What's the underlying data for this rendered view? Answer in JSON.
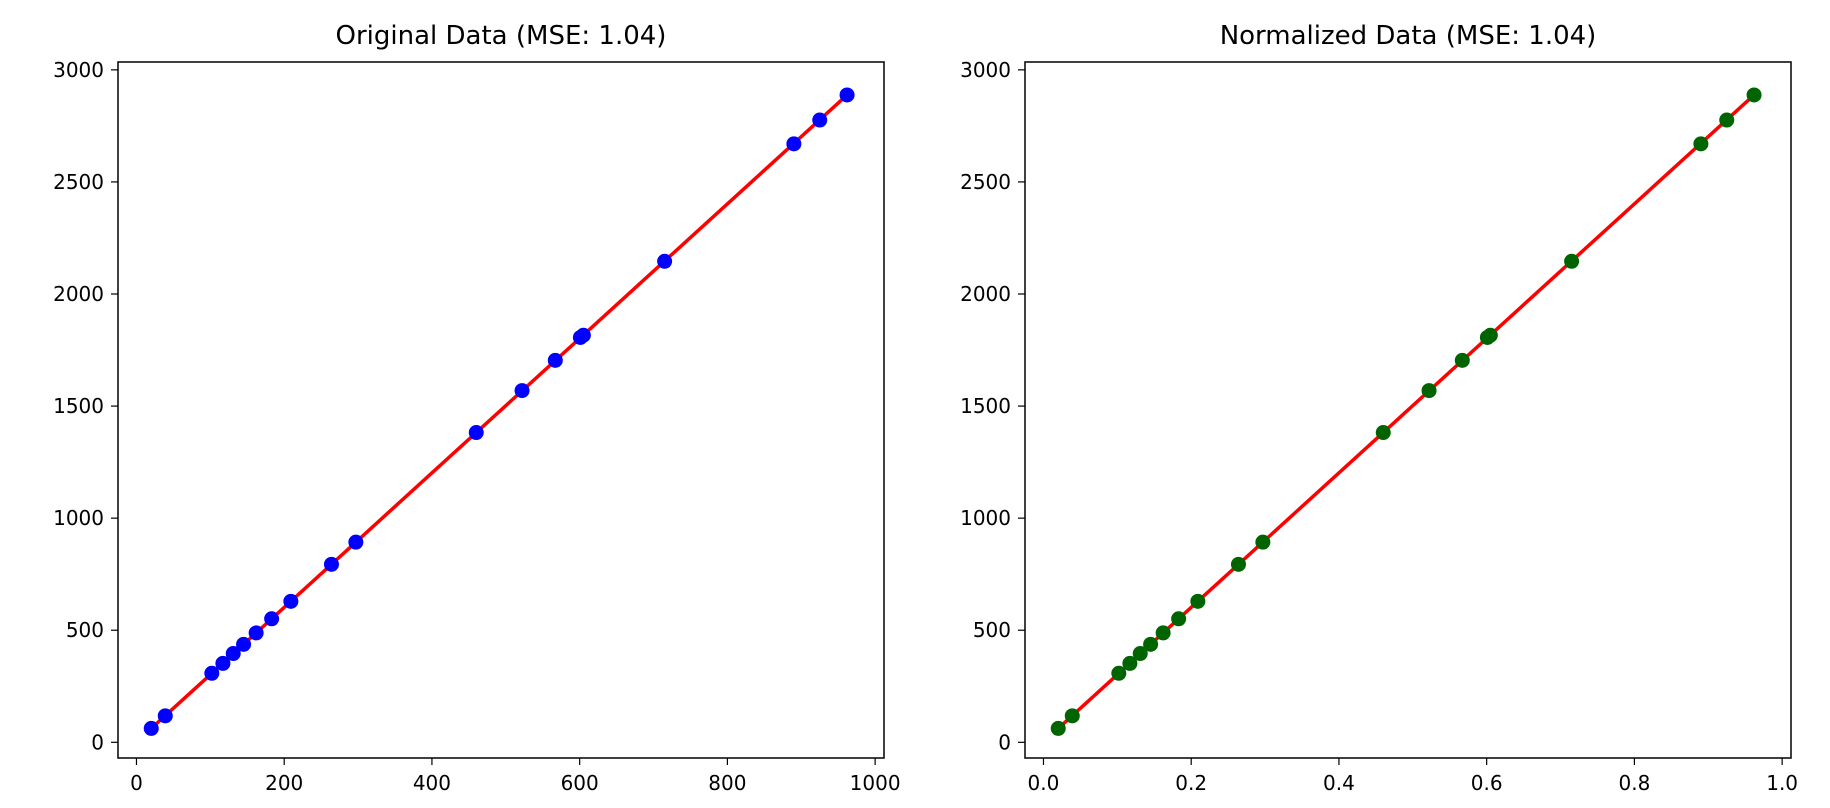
{
  "colors": {
    "original_points": "#0000ff",
    "normalized_points": "#006400",
    "fit_line": "#ff0000",
    "axes": "#000000",
    "background": "#ffffff"
  },
  "chart_data": [
    {
      "type": "scatter",
      "title": "Original Data (MSE: 1.04)",
      "xlabel": "",
      "ylabel": "",
      "xlim": [
        -25,
        1012
      ],
      "ylim": [
        -70,
        3035
      ],
      "xticks": [
        0,
        200,
        400,
        600,
        800,
        1000
      ],
      "yticks": [
        0,
        500,
        1000,
        1500,
        2000,
        2500,
        3000
      ],
      "grid": false,
      "legend": "none",
      "points": {
        "x": [
          20,
          39,
          102,
          117,
          131,
          145,
          162,
          183,
          209,
          264,
          297,
          460,
          522,
          567,
          601,
          605,
          715,
          890,
          925,
          962
        ],
        "y": [
          62,
          118,
          308,
          352,
          396,
          437,
          488,
          551,
          629,
          794,
          893,
          1382,
          1569,
          1704,
          1806,
          1816,
          2146,
          2670,
          2776,
          2888
        ],
        "color": "#0000ff"
      },
      "fit_line": {
        "x": [
          20,
          962
        ],
        "y": [
          62,
          2888
        ],
        "color": "#ff0000"
      }
    },
    {
      "type": "scatter",
      "title": "Normalized Data (MSE: 1.04)",
      "xlabel": "",
      "ylabel": "",
      "xlim": [
        -0.025,
        1.012
      ],
      "ylim": [
        -70,
        3035
      ],
      "xticks": [
        0.0,
        0.2,
        0.4,
        0.6,
        0.8,
        1.0
      ],
      "xtick_labels": [
        "0.0",
        "0.2",
        "0.4",
        "0.6",
        "0.8",
        "1.0"
      ],
      "yticks": [
        0,
        500,
        1000,
        1500,
        2000,
        2500,
        3000
      ],
      "grid": false,
      "legend": "none",
      "points": {
        "x": [
          0.02,
          0.039,
          0.102,
          0.117,
          0.131,
          0.145,
          0.162,
          0.183,
          0.209,
          0.264,
          0.297,
          0.46,
          0.522,
          0.567,
          0.601,
          0.605,
          0.715,
          0.89,
          0.925,
          0.962
        ],
        "y": [
          62,
          118,
          308,
          352,
          396,
          437,
          488,
          551,
          629,
          794,
          893,
          1382,
          1569,
          1704,
          1806,
          1816,
          2146,
          2670,
          2776,
          2888
        ],
        "color": "#006400"
      },
      "fit_line": {
        "x": [
          0.02,
          0.962
        ],
        "y": [
          62,
          2888
        ],
        "color": "#ff0000"
      }
    }
  ]
}
